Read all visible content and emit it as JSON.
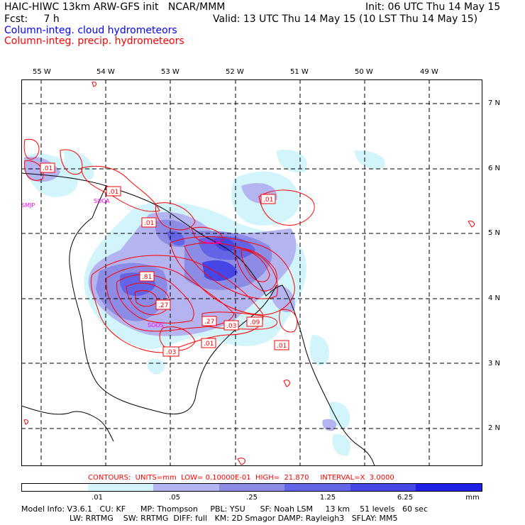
{
  "header": {
    "line1_left": "HAIC-HIWC 13km ARW-GFS init   NCAR/MMM",
    "line1_right": "Init: 06 UTC Thu 14 May 15",
    "line2_left": "Fcst:     7 h",
    "line2_right": "Valid: 13 UTC Thu 14 May 15 (10 LST Thu 14 May 15)",
    "line3": "Column-integ. cloud hydrometeors",
    "line4": "Column-integ. precip. hydrometeors"
  },
  "colors": {
    "cloud": "#0000ff",
    "precip": "#ff0000",
    "site": "#ff00ff",
    "shades": [
      "#ffffff",
      "#d2f5fb",
      "#b4b4f0",
      "#8c8ce6",
      "#6464e6",
      "#4646e6",
      "#1e1ee6"
    ]
  },
  "map": {
    "lon_labels": [
      "55 W",
      "54 W",
      "53 W",
      "52 W",
      "51 W",
      "50 W",
      "49 W"
    ],
    "lat_labels": [
      "7 N",
      "6 N",
      "5 N",
      "4 N",
      "3 N",
      "2 N"
    ],
    "sites": [
      "SMJP",
      "SOCA",
      "SOOA",
      "SOOS"
    ],
    "contour_labels": [
      ".01",
      ".01",
      ".01",
      ".01",
      ".81",
      ".27",
      ".27",
      ".03",
      ".09",
      ".03",
      ".01",
      ".01"
    ]
  },
  "contours_line": "CONTOURS:  UNITS=mm  LOW= 0.10000E-01  HIGH=  21.870     INTERVAL=X  3.0000",
  "colorbar": {
    "ticks": [
      ".01",
      ".05",
      ".25",
      "1.25",
      "6.25"
    ],
    "unit": "mm"
  },
  "footer": {
    "line1": "Model Info: V3.6.1   CU: KF      MP: Thompson     PBL: YSU      SF: Noah LSM     13 km    51 levels   60 sec",
    "line2": "LW: RRTMG    SW: RRTMG  DIFF: full   KM: 2D Smagor DAMP: Rayleigh3   SFLAY: MM5"
  }
}
